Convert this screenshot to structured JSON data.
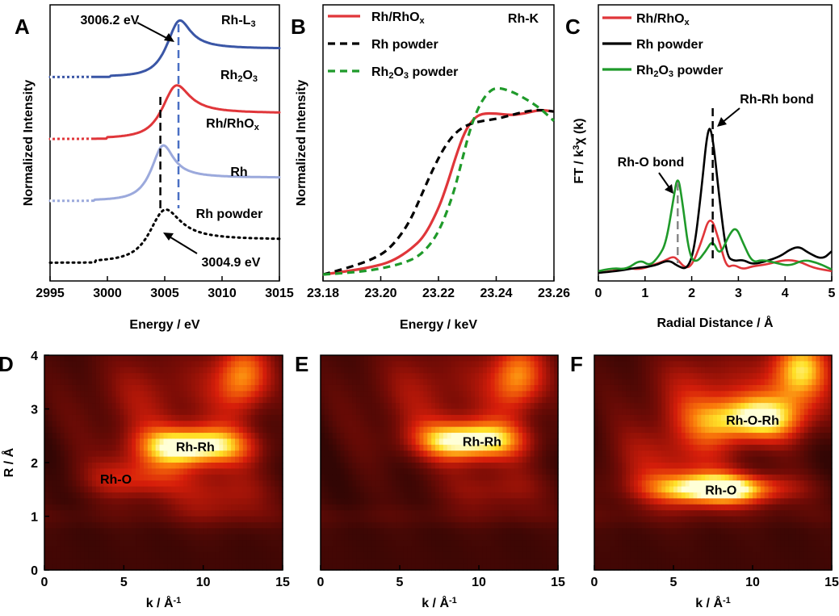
{
  "chart_data": [
    {
      "panel": "A",
      "type": "line",
      "xlabel": "Energy / eV",
      "ylabel": "Normalized Intensity",
      "xlim": [
        2995,
        3015
      ],
      "xticks": [
        "2995",
        "3000",
        "3005",
        "3010",
        "3015"
      ],
      "edge_label": "Rh-L3",
      "series": [
        {
          "name": "Rh2O3",
          "color": "#3a56a6",
          "style": "solid",
          "offset": 3.6,
          "peak_x": 3006.2,
          "peak_y": 1.0,
          "width": 1.6,
          "tail": 0.55,
          "preedge": 0.0
        },
        {
          "name": "Rh/RhOx",
          "color": "#e0363a",
          "style": "solid",
          "offset": 2.4,
          "peak_x": 3005.9,
          "peak_y": 0.95,
          "width": 1.9,
          "tail": 0.5,
          "preedge": 0.0
        },
        {
          "name": "Rh",
          "color": "#9ba9dc",
          "style": "solid",
          "offset": 1.2,
          "peak_x": 3004.8,
          "peak_y": 1.0,
          "width": 1.5,
          "tail": 0.45,
          "preedge": 0.0
        },
        {
          "name": "Rh powder",
          "color": "#000000",
          "style": "dotted",
          "offset": 0.0,
          "peak_x": 3004.9,
          "peak_y": 0.95,
          "width": 2.2,
          "tail": 0.45,
          "preedge": 0.0
        }
      ],
      "annotations": [
        {
          "text": "3006.2 eV",
          "x": 3006.2,
          "guide_color": "#4a6fc4"
        },
        {
          "text": "3004.9 eV",
          "x": 3004.9,
          "guide_color": "#000000"
        }
      ]
    },
    {
      "panel": "B",
      "type": "line",
      "xlabel": "Energy / keV",
      "ylabel": "Normalized Intensity",
      "xlim": [
        23.18,
        23.26
      ],
      "xticks": [
        "23.18",
        "23.20",
        "23.22",
        "23.24",
        "23.26"
      ],
      "edge_label": "Rh-K",
      "legend_position": "top-left",
      "series": [
        {
          "name": "Rh/RhOx",
          "color": "#e0363a",
          "style": "solid",
          "x": [
            23.18,
            23.19,
            23.2,
            23.205,
            23.21,
            23.215,
            23.22,
            23.223,
            23.226,
            23.229,
            23.232,
            23.235,
            23.24,
            23.245,
            23.25,
            23.255,
            23.26
          ],
          "y": [
            0.0,
            0.02,
            0.05,
            0.08,
            0.13,
            0.2,
            0.35,
            0.48,
            0.63,
            0.76,
            0.83,
            0.86,
            0.86,
            0.85,
            0.86,
            0.88,
            0.87
          ]
        },
        {
          "name": "Rh powder",
          "color": "#000000",
          "style": "dashed",
          "x": [
            23.18,
            23.19,
            23.2,
            23.205,
            23.21,
            23.214,
            23.218,
            23.222,
            23.226,
            23.23,
            23.235,
            23.24,
            23.245,
            23.25,
            23.255,
            23.26
          ],
          "y": [
            0.0,
            0.04,
            0.1,
            0.17,
            0.28,
            0.42,
            0.56,
            0.68,
            0.76,
            0.8,
            0.82,
            0.83,
            0.85,
            0.87,
            0.88,
            0.87
          ]
        },
        {
          "name": "Rh2O3 powder",
          "color": "#1f9a2a",
          "style": "dashed",
          "x": [
            23.18,
            23.19,
            23.2,
            23.21,
            23.215,
            23.22,
            23.225,
            23.228,
            23.231,
            23.234,
            23.237,
            23.24,
            23.245,
            23.25,
            23.255,
            23.26
          ],
          "y": [
            0.0,
            0.01,
            0.03,
            0.07,
            0.12,
            0.22,
            0.42,
            0.6,
            0.78,
            0.9,
            0.97,
            1.0,
            0.98,
            0.94,
            0.89,
            0.82
          ]
        }
      ]
    },
    {
      "panel": "C",
      "type": "line",
      "xlabel": "Radial Distance / Å",
      "ylabel_main": "FT / k",
      "ylabel_sup": "3",
      "ylabel_end": "χ (k)",
      "xlim": [
        0,
        5
      ],
      "xticks": [
        "0",
        "1",
        "2",
        "3",
        "4",
        "5"
      ],
      "legend_position": "top-left",
      "series": [
        {
          "name": "Rh/RhOx",
          "color": "#e0363a",
          "style": "solid",
          "x": [
            0,
            0.3,
            0.6,
            0.9,
            1.2,
            1.4,
            1.6,
            1.7,
            1.85,
            2.0,
            2.2,
            2.4,
            2.6,
            2.75,
            2.9,
            3.1,
            3.3,
            3.6,
            4.0,
            4.3,
            4.6,
            5.0
          ],
          "y": [
            0.02,
            0.03,
            0.05,
            0.04,
            0.07,
            0.09,
            0.12,
            0.1,
            0.05,
            0.06,
            0.2,
            0.38,
            0.2,
            0.05,
            0.07,
            0.04,
            0.06,
            0.07,
            0.1,
            0.09,
            0.05,
            0.03
          ]
        },
        {
          "name": "Rh powder",
          "color": "#000000",
          "style": "solid",
          "x": [
            0,
            0.4,
            0.8,
            1.2,
            1.5,
            1.7,
            1.9,
            2.05,
            2.2,
            2.35,
            2.45,
            2.6,
            2.75,
            2.9,
            3.1,
            3.3,
            3.6,
            3.9,
            4.1,
            4.3,
            4.5,
            4.8,
            5.0
          ],
          "y": [
            0.02,
            0.03,
            0.05,
            0.06,
            0.1,
            0.06,
            0.04,
            0.15,
            0.5,
            0.92,
            0.85,
            0.45,
            0.12,
            0.09,
            0.1,
            0.07,
            0.09,
            0.12,
            0.16,
            0.18,
            0.14,
            0.1,
            0.15
          ]
        },
        {
          "name": "Rh2O3 powder",
          "color": "#1f9a2a",
          "style": "solid",
          "x": [
            0,
            0.3,
            0.6,
            0.9,
            1.1,
            1.3,
            1.45,
            1.6,
            1.7,
            1.8,
            1.95,
            2.1,
            2.3,
            2.45,
            2.6,
            2.8,
            2.95,
            3.1,
            3.3,
            3.5,
            3.8,
            4.1,
            4.4,
            4.7,
            5.0
          ],
          "y": [
            0.03,
            0.05,
            0.04,
            0.1,
            0.06,
            0.12,
            0.2,
            0.45,
            0.62,
            0.45,
            0.12,
            0.08,
            0.15,
            0.22,
            0.12,
            0.25,
            0.3,
            0.2,
            0.08,
            0.1,
            0.08,
            0.06,
            0.1,
            0.08,
            0.04
          ]
        }
      ],
      "annotations": [
        {
          "text": "Rh-Rh bond",
          "x": 2.45,
          "guide_color": "#000000"
        },
        {
          "text": "Rh-O bond",
          "x": 1.7,
          "guide_color": "#888888"
        }
      ]
    },
    {
      "panel": "D",
      "type": "heatmap",
      "xlabel": "k / Å",
      "xlabel_sup": "-1",
      "ylabel": "R / Å",
      "xlim": [
        0,
        15
      ],
      "ylim": [
        0,
        4
      ],
      "xticks": [
        "0",
        "5",
        "10",
        "15"
      ],
      "yticks": [
        "0",
        "1",
        "2",
        "3",
        "4"
      ],
      "labels": [
        {
          "text": "Rh-Rh",
          "k": 9.5,
          "r": 2.3
        },
        {
          "text": "Rh-O",
          "k": 4.5,
          "r": 1.7
        }
      ],
      "blobs": [
        {
          "k": 9.5,
          "r": 2.3,
          "sk": 3.6,
          "sr": 0.38,
          "a": 1.0
        },
        {
          "k": 12.5,
          "r": 3.6,
          "sk": 1.8,
          "sr": 0.7,
          "a": 0.7
        },
        {
          "k": 5.5,
          "r": 1.7,
          "sk": 3.0,
          "sr": 0.4,
          "a": 0.45
        },
        {
          "k": 11,
          "r": 1.4,
          "sk": 3.5,
          "sr": 0.5,
          "a": 0.35
        },
        {
          "k": 7,
          "r": 3.2,
          "sk": 4.5,
          "sr": 1.0,
          "a": 0.3
        }
      ]
    },
    {
      "panel": "E",
      "type": "heatmap",
      "xlabel": "k / Å",
      "xlabel_sup": "-1",
      "xlim": [
        0,
        15
      ],
      "ylim": [
        0,
        4
      ],
      "xticks": [
        "0",
        "5",
        "10",
        "15"
      ],
      "labels": [
        {
          "text": "Rh-Rh",
          "k": 10.2,
          "r": 2.4
        }
      ],
      "blobs": [
        {
          "k": 9.5,
          "r": 2.4,
          "sk": 3.4,
          "sr": 0.38,
          "a": 1.0
        },
        {
          "k": 12.5,
          "r": 3.6,
          "sk": 1.8,
          "sr": 0.7,
          "a": 0.7
        },
        {
          "k": 11,
          "r": 1.5,
          "sk": 3.5,
          "sr": 0.45,
          "a": 0.3
        },
        {
          "k": 7,
          "r": 3.3,
          "sk": 4.5,
          "sr": 1.0,
          "a": 0.3
        }
      ]
    },
    {
      "panel": "F",
      "type": "heatmap",
      "xlabel": "k / Å",
      "xlabel_sup": "-1",
      "xlim": [
        0,
        15
      ],
      "ylim": [
        0,
        4
      ],
      "xticks": [
        "0",
        "5",
        "10",
        "15"
      ],
      "labels": [
        {
          "text": "Rh-O-Rh",
          "k": 10.0,
          "r": 2.8
        },
        {
          "text": "Rh-O",
          "k": 8.0,
          "r": 1.5
        }
      ],
      "blobs": [
        {
          "k": 8.0,
          "r": 1.5,
          "sk": 4.2,
          "sr": 0.3,
          "a": 1.0
        },
        {
          "k": 10.0,
          "r": 2.8,
          "sk": 3.5,
          "sr": 0.45,
          "a": 0.85
        },
        {
          "k": 13.0,
          "r": 3.7,
          "sk": 2.0,
          "sr": 0.7,
          "a": 0.85
        },
        {
          "k": 5,
          "r": 2.0,
          "sk": 4.0,
          "sr": 0.8,
          "a": 0.4
        },
        {
          "k": 7,
          "r": 3.4,
          "sk": 4.0,
          "sr": 0.8,
          "a": 0.35
        }
      ]
    }
  ]
}
